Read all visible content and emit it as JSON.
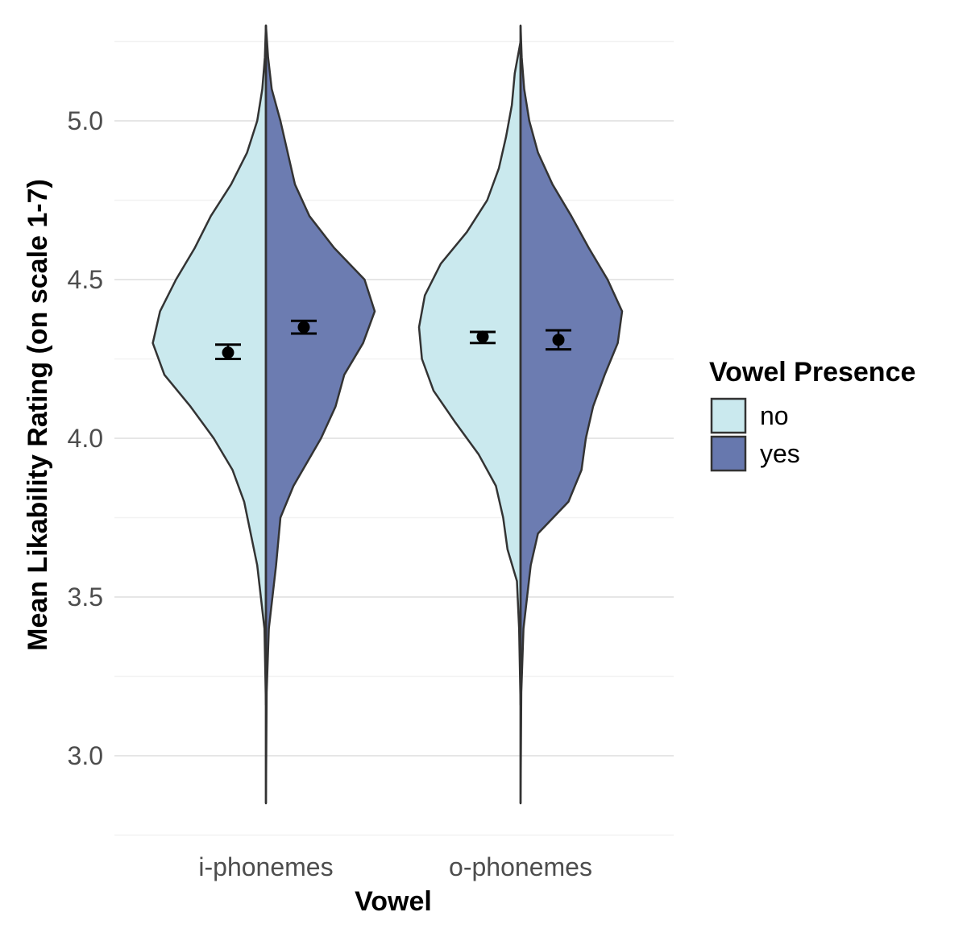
{
  "chart_data": {
    "type": "split-violin",
    "xlabel": "Vowel",
    "ylabel": "Mean Likability Rating (on scale 1-7)",
    "categories": [
      "i-phonemes",
      "o-phonemes"
    ],
    "ylim": [
      2.72,
      5.3
    ],
    "yticks": [
      3.0,
      3.5,
      4.0,
      4.5,
      5.0
    ],
    "ytick_labels": [
      "3.0",
      "3.5",
      "4.0",
      "4.5",
      "5.0"
    ],
    "grid": true,
    "legend": {
      "title": "Vowel Presence",
      "position": "right",
      "entries": [
        {
          "label": "no",
          "color": "#cae9ee"
        },
        {
          "label": "yes",
          "color": "#6778ae"
        }
      ]
    },
    "series": [
      {
        "name": "no",
        "color": "#cae9ee",
        "means": [
          4.27,
          4.32
        ],
        "error_low": [
          4.25,
          4.3
        ],
        "error_high": [
          4.295,
          4.335
        ],
        "density": [
          {
            "ymin": 3.16,
            "ymax": 5.3,
            "profile": [
              [
                3.16,
                0.0
              ],
              [
                3.4,
                0.01
              ],
              [
                3.6,
                0.06
              ],
              [
                3.8,
                0.15
              ],
              [
                3.9,
                0.23
              ],
              [
                4.0,
                0.36
              ],
              [
                4.1,
                0.52
              ],
              [
                4.2,
                0.7
              ],
              [
                4.3,
                0.78
              ],
              [
                4.4,
                0.73
              ],
              [
                4.5,
                0.62
              ],
              [
                4.6,
                0.49
              ],
              [
                4.7,
                0.38
              ],
              [
                4.8,
                0.24
              ],
              [
                4.9,
                0.13
              ],
              [
                5.0,
                0.06
              ],
              [
                5.1,
                0.025
              ],
              [
                5.2,
                0.007
              ],
              [
                5.3,
                0.0
              ]
            ]
          },
          {
            "ymin": 3.16,
            "ymax": 5.25,
            "profile": [
              [
                3.16,
                0.0
              ],
              [
                3.4,
                0.01
              ],
              [
                3.55,
                0.025
              ],
              [
                3.65,
                0.09
              ],
              [
                3.75,
                0.12
              ],
              [
                3.85,
                0.17
              ],
              [
                3.95,
                0.29
              ],
              [
                4.05,
                0.45
              ],
              [
                4.15,
                0.6
              ],
              [
                4.25,
                0.68
              ],
              [
                4.35,
                0.7
              ],
              [
                4.45,
                0.66
              ],
              [
                4.55,
                0.55
              ],
              [
                4.65,
                0.37
              ],
              [
                4.75,
                0.23
              ],
              [
                4.85,
                0.15
              ],
              [
                4.95,
                0.1
              ],
              [
                5.05,
                0.06
              ],
              [
                5.15,
                0.04
              ],
              [
                5.25,
                0.0
              ]
            ]
          }
        ]
      },
      {
        "name": "yes",
        "color": "#6778ae",
        "means": [
          4.35,
          4.31
        ],
        "error_low": [
          4.33,
          4.28
        ],
        "error_high": [
          4.37,
          4.34
        ],
        "density": [
          {
            "ymin": 2.85,
            "ymax": 5.3,
            "profile": [
              [
                2.85,
                0.0
              ],
              [
                3.2,
                0.005
              ],
              [
                3.4,
                0.02
              ],
              [
                3.6,
                0.07
              ],
              [
                3.75,
                0.1
              ],
              [
                3.85,
                0.19
              ],
              [
                4.0,
                0.38
              ],
              [
                4.1,
                0.48
              ],
              [
                4.2,
                0.54
              ],
              [
                4.3,
                0.67
              ],
              [
                4.4,
                0.75
              ],
              [
                4.5,
                0.68
              ],
              [
                4.6,
                0.47
              ],
              [
                4.7,
                0.3
              ],
              [
                4.8,
                0.2
              ],
              [
                4.9,
                0.15
              ],
              [
                5.0,
                0.1
              ],
              [
                5.1,
                0.04
              ],
              [
                5.2,
                0.015
              ],
              [
                5.3,
                0.0
              ]
            ]
          },
          {
            "ymin": 2.85,
            "ymax": 5.3,
            "profile": [
              [
                2.85,
                0.0
              ],
              [
                3.2,
                0.005
              ],
              [
                3.4,
                0.02
              ],
              [
                3.6,
                0.07
              ],
              [
                3.7,
                0.12
              ],
              [
                3.8,
                0.33
              ],
              [
                3.9,
                0.42
              ],
              [
                4.0,
                0.45
              ],
              [
                4.1,
                0.5
              ],
              [
                4.2,
                0.58
              ],
              [
                4.3,
                0.67
              ],
              [
                4.4,
                0.7
              ],
              [
                4.5,
                0.6
              ],
              [
                4.6,
                0.47
              ],
              [
                4.7,
                0.35
              ],
              [
                4.8,
                0.22
              ],
              [
                4.9,
                0.12
              ],
              [
                5.0,
                0.06
              ],
              [
                5.1,
                0.025
              ],
              [
                5.2,
                0.008
              ],
              [
                5.3,
                0.0
              ]
            ]
          }
        ]
      }
    ]
  }
}
